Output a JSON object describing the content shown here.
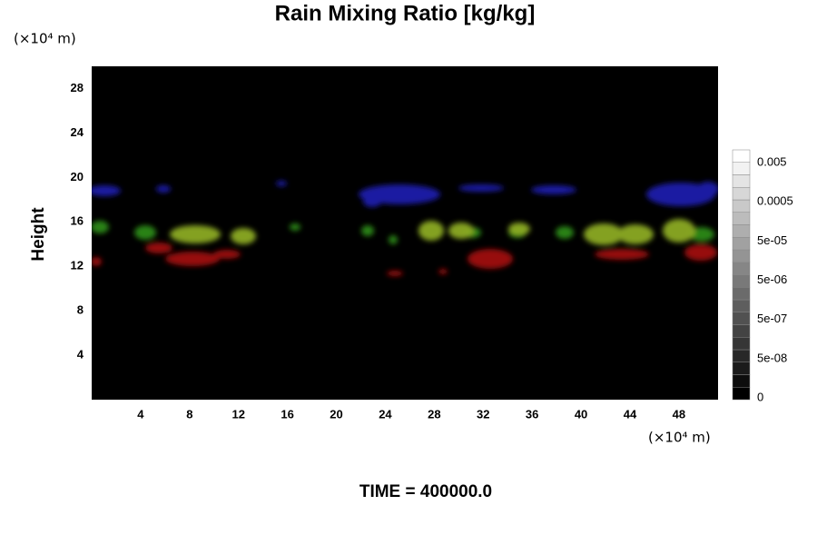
{
  "chart_data": {
    "type": "volume",
    "title": "Rain Mixing Ratio [kg/kg]",
    "ylabel": "Height",
    "xunit": "(×10⁴ m)",
    "yunit": "(×10⁴ m)",
    "footer": "TIME = 400000.0",
    "xlim": [
      0,
      51.2
    ],
    "xticks": [
      4,
      8,
      12,
      16,
      20,
      24,
      28,
      32,
      36,
      40,
      44,
      48
    ],
    "ylim": [
      0,
      30
    ],
    "yticks": [
      4,
      8,
      12,
      16,
      20,
      24,
      28
    ],
    "colorbar_ticks": [
      0,
      {
        "value": 5e-08,
        "label": "5e-08"
      },
      {
        "value": 5e-07,
        "label": "5e-07"
      },
      {
        "value": 5e-06,
        "label": "5e-06"
      },
      {
        "value": 5e-05,
        "label": "5e-05"
      },
      0.0005,
      0.005
    ]
  }
}
